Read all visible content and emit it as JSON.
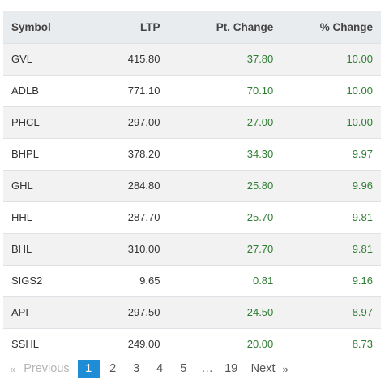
{
  "table": {
    "headers": {
      "symbol": "Symbol",
      "ltp": "LTP",
      "pt_change": "Pt. Change",
      "pct_change": "% Change"
    },
    "rows": [
      {
        "symbol": "GVL",
        "ltp": "415.80",
        "pt_change": "37.80",
        "pct_change": "10.00"
      },
      {
        "symbol": "ADLB",
        "ltp": "771.10",
        "pt_change": "70.10",
        "pct_change": "10.00"
      },
      {
        "symbol": "PHCL",
        "ltp": "297.00",
        "pt_change": "27.00",
        "pct_change": "10.00"
      },
      {
        "symbol": "BHPL",
        "ltp": "378.20",
        "pt_change": "34.30",
        "pct_change": "9.97"
      },
      {
        "symbol": "GHL",
        "ltp": "284.80",
        "pt_change": "25.80",
        "pct_change": "9.96"
      },
      {
        "symbol": "HHL",
        "ltp": "287.70",
        "pt_change": "25.70",
        "pct_change": "9.81"
      },
      {
        "symbol": "BHL",
        "ltp": "310.00",
        "pt_change": "27.70",
        "pct_change": "9.81"
      },
      {
        "symbol": "SIGS2",
        "ltp": "9.65",
        "pt_change": "0.81",
        "pct_change": "9.16"
      },
      {
        "symbol": "API",
        "ltp": "297.50",
        "pt_change": "24.50",
        "pct_change": "8.97"
      },
      {
        "symbol": "SSHL",
        "ltp": "249.00",
        "pt_change": "20.00",
        "pct_change": "8.73"
      }
    ],
    "positive_color": "#2e7d32"
  },
  "pagination": {
    "prev_arrow": "«",
    "prev_label": "Previous",
    "pages": [
      "1",
      "2",
      "3",
      "4",
      "5"
    ],
    "current": "1",
    "ellipsis": "…",
    "last_page": "19",
    "next_label": "Next",
    "next_arrow": "»",
    "current_color": "#1f8dd6"
  }
}
